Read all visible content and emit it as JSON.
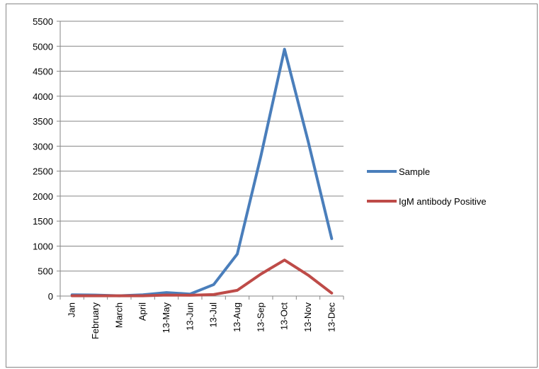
{
  "chart_data": {
    "type": "line",
    "title": "",
    "xlabel": "",
    "ylabel": "",
    "categories": [
      "Jan",
      "February",
      "March",
      "April",
      "13-May",
      "13-Jun",
      "13-Jul",
      "13-Aug",
      "13-Sep",
      "13-Oct",
      "13-Nov",
      "13-Dec"
    ],
    "ylim": [
      0,
      5500
    ],
    "yticks": [
      "0",
      "500",
      "1000",
      "1500",
      "2000",
      "2500",
      "3000",
      "3500",
      "4000",
      "4500",
      "5000",
      "5500"
    ],
    "grid": true,
    "legend_position": "right",
    "series": [
      {
        "name": "Sample",
        "color": "#4a7ebb",
        "values": [
          25,
          20,
          5,
          25,
          70,
          40,
          230,
          840,
          2800,
          4940,
          3100,
          1150
        ]
      },
      {
        "name": "IgM antibody Positive",
        "color": "#be4b48",
        "values": [
          5,
          5,
          5,
          5,
          20,
          15,
          30,
          115,
          440,
          720,
          420,
          60
        ]
      }
    ]
  }
}
